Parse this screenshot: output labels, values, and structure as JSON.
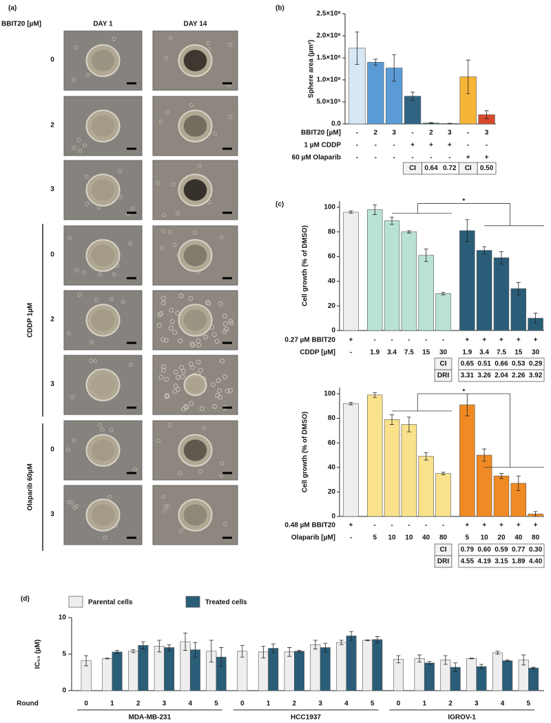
{
  "micrographs": {
    "label": "(a)",
    "row_header": "BBIT20 [µM]",
    "columns": [
      "DAY 1",
      "DAY 14"
    ],
    "rows": [
      "0",
      "2",
      "3",
      "0",
      "2",
      "3",
      "0",
      "3"
    ],
    "groups": [
      {
        "label": "CDDP 1µM"
      },
      {
        "label": "Olaparib 60µM"
      }
    ]
  },
  "chart_data": [
    {
      "type": "bar",
      "panel_label": "(b)",
      "y_label": "Sphere area (µm²)",
      "ylim": [
        0,
        2500000
      ],
      "yticks": [
        {
          "value": 0,
          "label": "0.0"
        },
        {
          "value": 500000,
          "label": "5.0×10⁵"
        },
        {
          "value": 1000000,
          "label": "1.0×10⁶"
        },
        {
          "value": 1500000,
          "label": "1.5×10⁶"
        },
        {
          "value": 2000000,
          "label": "2.0×10⁶"
        },
        {
          "value": 2500000,
          "label": "2.5×10⁶"
        }
      ],
      "values": [
        1720000,
        1400000,
        1270000,
        630000,
        20000,
        10000,
        1070000,
        210000
      ],
      "errors": [
        370000,
        70000,
        300000,
        90000,
        10000,
        5000,
        380000,
        90000
      ],
      "colors": [
        "#d7e7f3",
        "#5b9bd5",
        "#5b9bd5",
        "#2f6482",
        "#2f6482",
        "#2f6482",
        "#f6b536",
        "#d8482b"
      ],
      "rows": [
        {
          "label": "BBIT20 [µM]",
          "cells": [
            "-",
            "2",
            "3",
            "-",
            "2",
            "3",
            "-",
            "3"
          ]
        },
        {
          "label": "1 µM CDDP",
          "cells": [
            "-",
            "-",
            "-",
            "+",
            "+",
            "+",
            "-",
            "-"
          ]
        },
        {
          "label": "60 µM Olaparib",
          "cells": [
            "-",
            "-",
            "-",
            "-",
            "-",
            "-",
            "+",
            "+"
          ]
        }
      ],
      "stat_tables": [
        {
          "rows": [
            {
              "label": "CI",
              "cells": [
                "0.64",
                "0.72"
              ]
            }
          ]
        },
        {
          "rows": [
            {
              "label": "CI",
              "cells": [
                "0.50"
              ]
            }
          ]
        }
      ]
    },
    {
      "type": "bar",
      "panel_label": "(c)",
      "y_label": "Cell growth (% of DMSO)",
      "ylim": [
        0,
        105
      ],
      "yticks": [
        0,
        20,
        40,
        60,
        80,
        100
      ],
      "values": [
        96,
        98,
        89,
        80,
        61,
        30,
        81,
        65,
        59,
        34,
        10
      ],
      "errors": [
        1,
        4,
        3,
        1,
        5,
        1,
        9,
        3,
        5,
        5,
        4
      ],
      "colors": [
        "#eeeeee",
        "#b9e2d3",
        "#b9e2d3",
        "#b9e2d3",
        "#b9e2d3",
        "#b9e2d3",
        "#2a5d78",
        "#2a5d78",
        "#2a5d78",
        "#2a5d78",
        "#2a5d78"
      ],
      "rows": [
        {
          "label": "0.27 µM BBIT20",
          "cells": [
            "+",
            "-",
            "-",
            "-",
            "-",
            "-",
            "+",
            "+",
            "+",
            "+",
            "+"
          ]
        },
        {
          "label": "CDDP [µM]",
          "cells": [
            "-",
            "1.9",
            "3.4",
            "7.5",
            "15",
            "30",
            "1.9",
            "3.4",
            "7.5",
            "15",
            "30"
          ]
        }
      ],
      "stat_tables": [
        {
          "rows": [
            {
              "label": "CI",
              "cells": [
                "0.65",
                "0.51",
                "0.66",
                "0.53",
                "0.29"
              ]
            },
            {
              "label": "DRI",
              "cells": [
                "3.31",
                "3.26",
                "2.04",
                "2.26",
                "3.92"
              ]
            }
          ]
        }
      ],
      "annotation": "*"
    },
    {
      "type": "bar",
      "y_label": "Cell growth (% of DMSO)",
      "ylim": [
        0,
        105
      ],
      "yticks": [
        0,
        20,
        40,
        60,
        80,
        100
      ],
      "values": [
        92,
        99,
        79,
        75,
        49,
        35,
        91,
        50,
        33,
        27,
        2
      ],
      "errors": [
        1,
        2,
        4,
        6,
        3,
        1,
        9,
        5,
        2,
        6,
        2
      ],
      "colors": [
        "#eeeeee",
        "#fae28c",
        "#fae28c",
        "#fae28c",
        "#fae28c",
        "#fae28c",
        "#f08a24",
        "#f08a24",
        "#f08a24",
        "#f08a24",
        "#f08a24"
      ],
      "rows": [
        {
          "label": "0.48 µM BBIT20",
          "cells": [
            "+",
            "-",
            "-",
            "-",
            "-",
            "-",
            "+",
            "+",
            "+",
            "+",
            "+"
          ]
        },
        {
          "label": "Olaparib [µM]",
          "cells": [
            "-",
            "5",
            "10",
            "10",
            "40",
            "80",
            "5",
            "10",
            "20",
            "40",
            "80"
          ]
        }
      ],
      "stat_tables": [
        {
          "rows": [
            {
              "label": "CI",
              "cells": [
                "0.79",
                "0.60",
                "0.59",
                "0.77",
                "0.30"
              ]
            },
            {
              "label": "DRI",
              "cells": [
                "4.55",
                "4.19",
                "3.15",
                "1.89",
                "4.40"
              ]
            }
          ]
        }
      ],
      "annotation": "*"
    },
    {
      "type": "grouped_bar",
      "panel_label": "(d)",
      "y_label": "IC₅₀  (µM)",
      "x_label": "Round",
      "ylim": [
        0,
        10
      ],
      "yticks": [
        0,
        5,
        10
      ],
      "groups": [
        {
          "name": "MDA-MB-231",
          "categories": [
            "0",
            "1",
            "2",
            "3",
            "4",
            "5"
          ]
        },
        {
          "name": "HCC1937",
          "categories": [
            "0",
            "1",
            "2",
            "3",
            "4",
            "5"
          ]
        },
        {
          "name": "IGROV-1",
          "categories": [
            "0",
            "1",
            "2",
            "3",
            "4",
            "5"
          ]
        }
      ],
      "series": [
        {
          "name": "Parental cells",
          "color": "#eeeeee",
          "values": [
            4.1,
            4.4,
            5.4,
            6.1,
            6.7,
            5.4,
            5.4,
            5.3,
            5.3,
            6.3,
            6.6,
            6.9,
            4.3,
            4.4,
            4.2,
            4.4,
            5.2,
            4.2
          ],
          "errors": [
            0.7,
            0.05,
            0.2,
            0.8,
            1.2,
            1.5,
            0.8,
            0.8,
            0.6,
            0.6,
            0.3,
            0.05,
            0.5,
            0.5,
            0.6,
            0.05,
            0.2,
            0.7
          ]
        },
        {
          "name": "Treated cells",
          "color": "#2a5d78",
          "values": [
            null,
            5.3,
            6.2,
            5.9,
            5.6,
            4.6,
            null,
            5.8,
            5.4,
            5.9,
            7.5,
            7.0,
            null,
            3.8,
            3.2,
            3.3,
            4.1,
            3.1
          ],
          "errors": [
            null,
            0.2,
            0.5,
            0.4,
            1.0,
            1.3,
            null,
            0.6,
            0.1,
            0.6,
            0.6,
            0.4,
            null,
            0.2,
            0.6,
            0.3,
            0.1,
            0.1
          ]
        }
      ]
    }
  ]
}
